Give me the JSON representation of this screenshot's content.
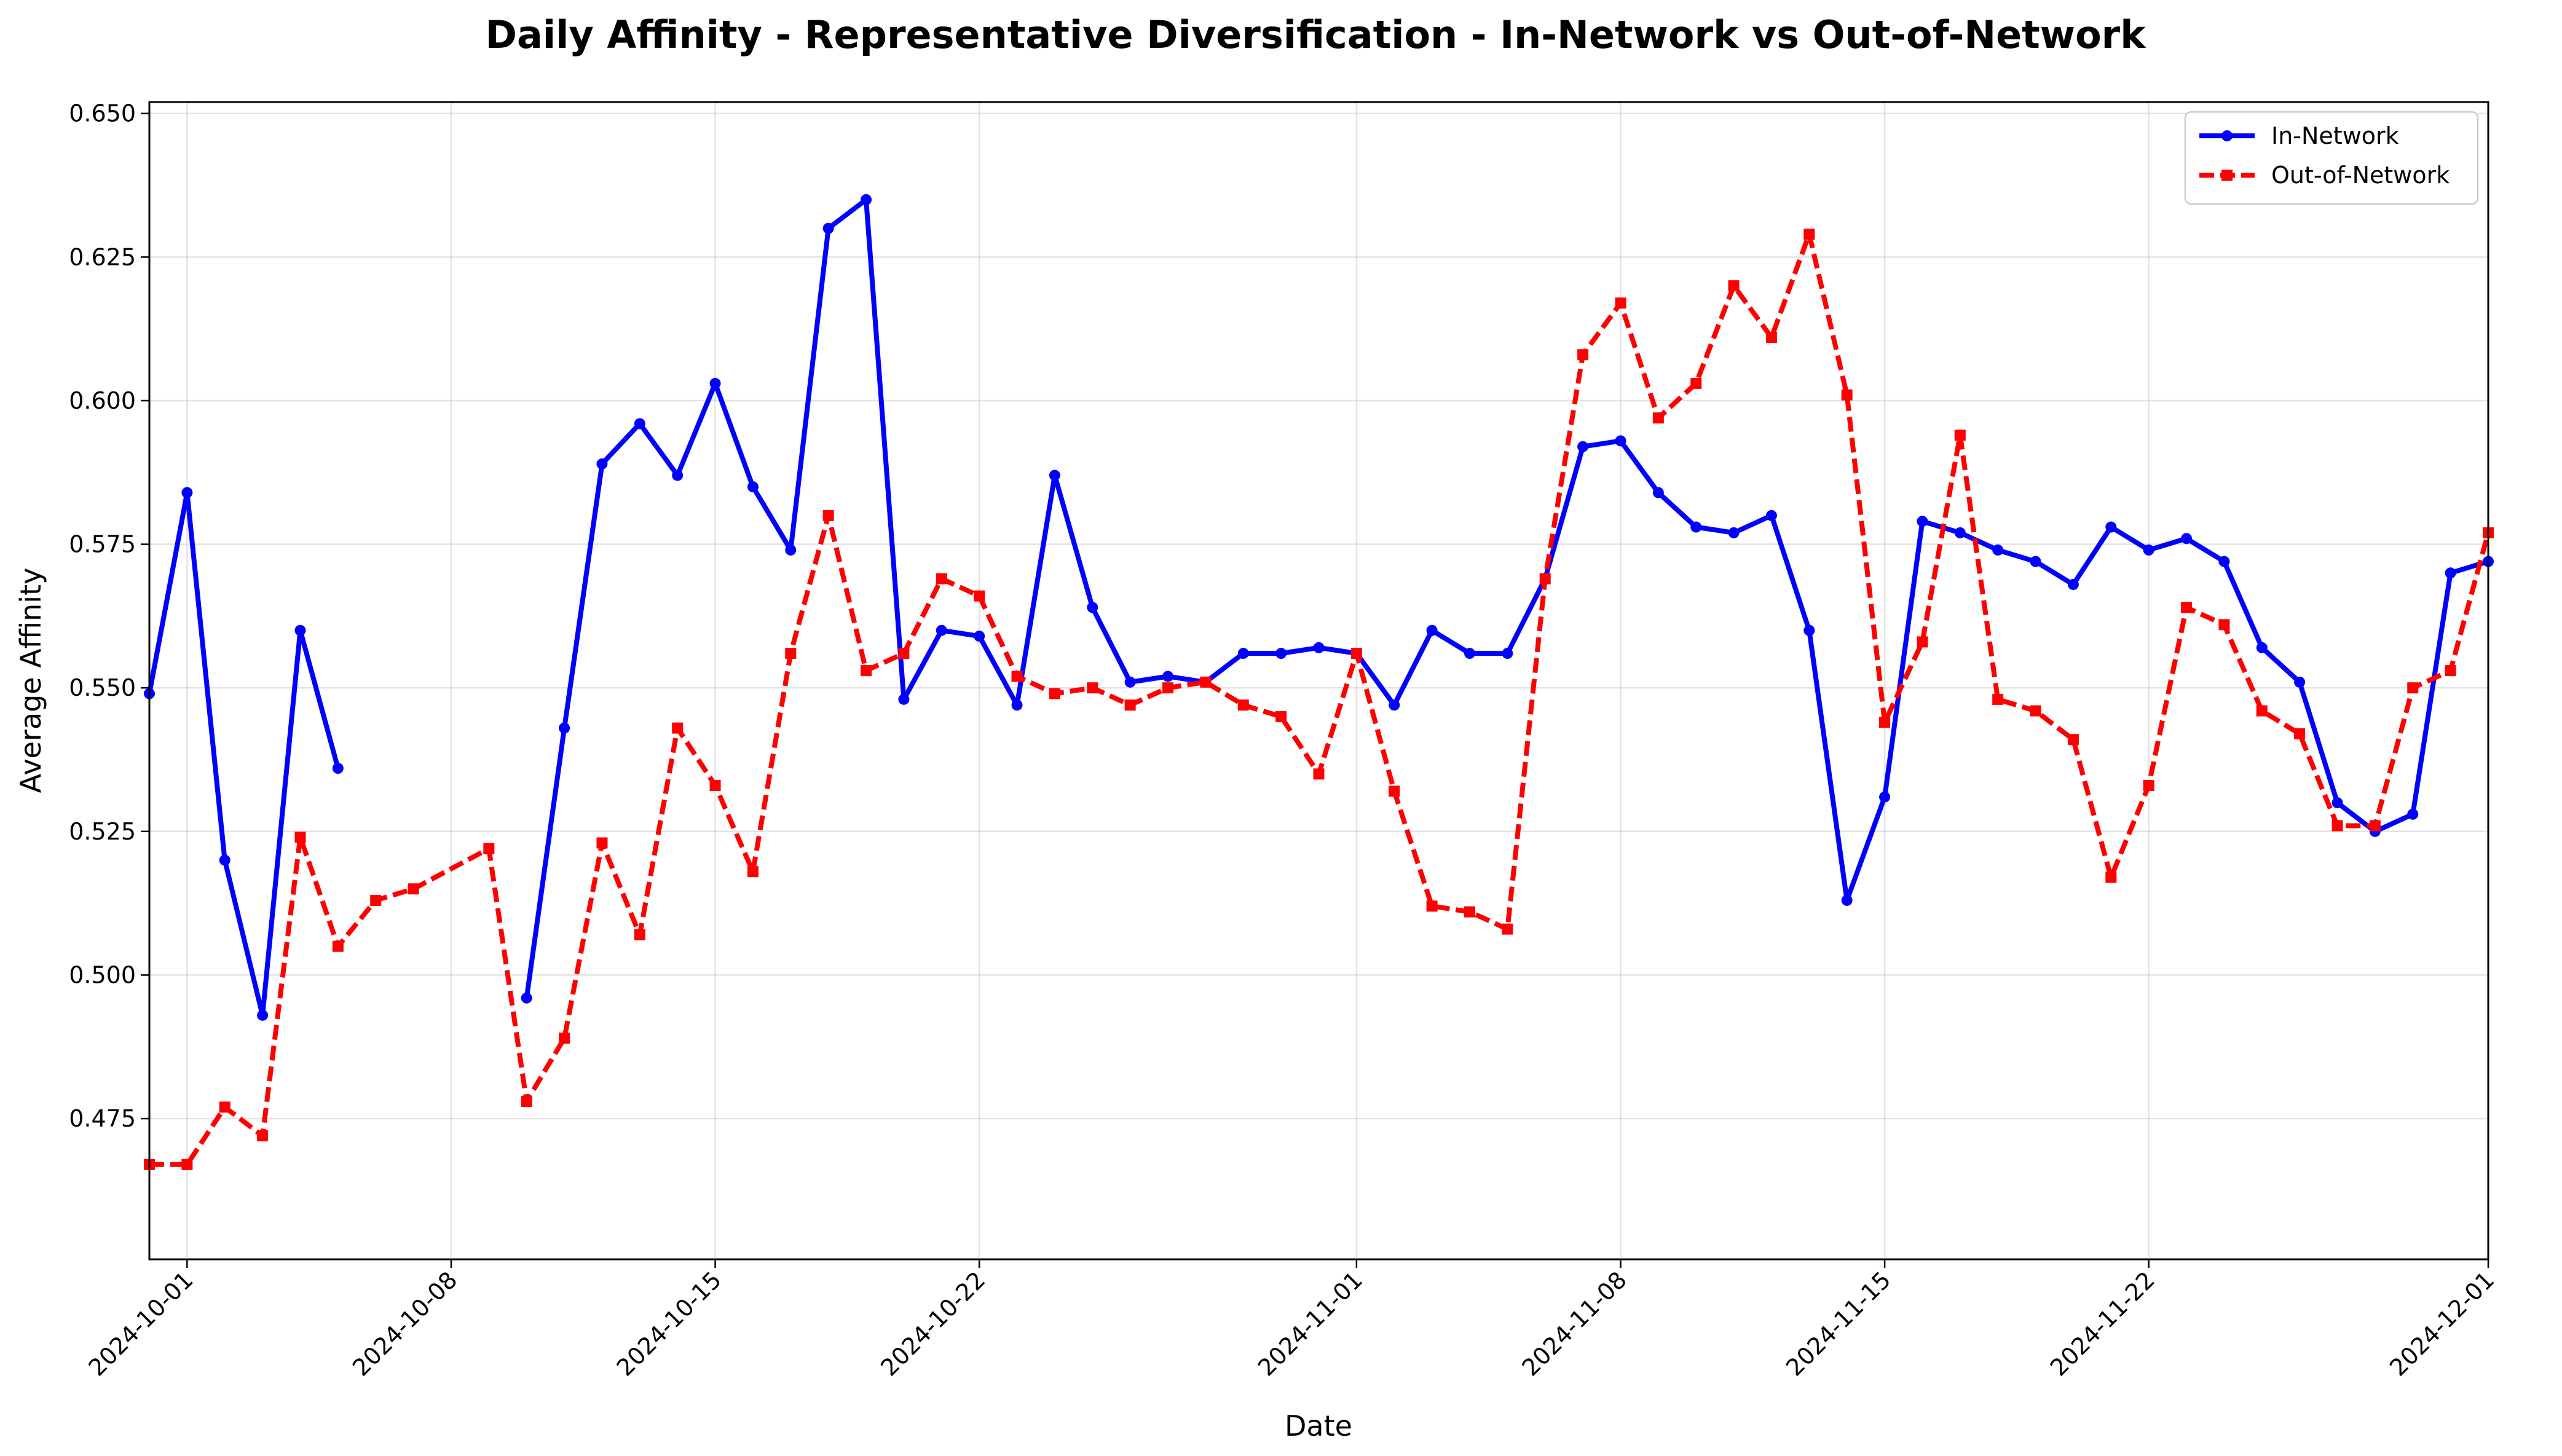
{
  "chart_data": {
    "type": "line",
    "title": "Daily Affinity - Representative Diversification - In-Network vs Out-of-Network",
    "xlabel": "Date",
    "ylabel": "Average Affinity",
    "xlim": [
      "2024-09-30",
      "2024-12-01"
    ],
    "ylim": [
      0.4505,
      0.652
    ],
    "x_ticks": [
      "2024-10-01",
      "2024-10-08",
      "2024-10-15",
      "2024-10-22",
      "2024-11-01",
      "2024-11-08",
      "2024-11-15",
      "2024-11-22",
      "2024-12-01"
    ],
    "y_ticks": [
      "0.475",
      "0.500",
      "0.525",
      "0.550",
      "0.575",
      "0.600",
      "0.625",
      "0.650"
    ],
    "grid": true,
    "legend_position": "top-right",
    "series": [
      {
        "name": "In-Network",
        "color": "#0000ff",
        "style": "solid",
        "marker": "circle",
        "points": [
          [
            "2024-09-30",
            0.549
          ],
          [
            "2024-10-01",
            0.584
          ],
          [
            "2024-10-02",
            0.52
          ],
          [
            "2024-10-03",
            0.493
          ],
          [
            "2024-10-04",
            0.56
          ],
          [
            "2024-10-05",
            0.536
          ],
          null,
          [
            "2024-10-10",
            0.496
          ],
          [
            "2024-10-11",
            0.543
          ],
          [
            "2024-10-12",
            0.589
          ],
          [
            "2024-10-13",
            0.596
          ],
          [
            "2024-10-14",
            0.587
          ],
          [
            "2024-10-15",
            0.603
          ],
          [
            "2024-10-16",
            0.585
          ],
          [
            "2024-10-17",
            0.574
          ],
          [
            "2024-10-18",
            0.63
          ],
          [
            "2024-10-19",
            0.635
          ],
          [
            "2024-10-20",
            0.548
          ],
          [
            "2024-10-21",
            0.56
          ],
          [
            "2024-10-22",
            0.559
          ],
          [
            "2024-10-23",
            0.547
          ],
          [
            "2024-10-24",
            0.587
          ],
          [
            "2024-10-25",
            0.564
          ],
          [
            "2024-10-26",
            0.551
          ],
          [
            "2024-10-27",
            0.552
          ],
          [
            "2024-10-28",
            0.551
          ],
          [
            "2024-10-29",
            0.556
          ],
          [
            "2024-10-30",
            0.556
          ],
          [
            "2024-10-31",
            0.557
          ],
          [
            "2024-11-01",
            0.556
          ],
          [
            "2024-11-02",
            0.547
          ],
          [
            "2024-11-03",
            0.56
          ],
          [
            "2024-11-04",
            0.556
          ],
          [
            "2024-11-05",
            0.556
          ],
          [
            "2024-11-06",
            0.569
          ],
          [
            "2024-11-07",
            0.592
          ],
          [
            "2024-11-08",
            0.593
          ],
          [
            "2024-11-09",
            0.584
          ],
          [
            "2024-11-10",
            0.578
          ],
          [
            "2024-11-11",
            0.577
          ],
          [
            "2024-11-12",
            0.58
          ],
          [
            "2024-11-13",
            0.56
          ],
          [
            "2024-11-14",
            0.513
          ],
          [
            "2024-11-15",
            0.531
          ],
          [
            "2024-11-16",
            0.579
          ],
          [
            "2024-11-17",
            0.577
          ],
          [
            "2024-11-18",
            0.574
          ],
          [
            "2024-11-19",
            0.572
          ],
          [
            "2024-11-20",
            0.568
          ],
          [
            "2024-11-21",
            0.578
          ],
          [
            "2024-11-22",
            0.574
          ],
          [
            "2024-11-23",
            0.576
          ],
          [
            "2024-11-24",
            0.572
          ],
          [
            "2024-11-25",
            0.557
          ],
          [
            "2024-11-26",
            0.551
          ],
          [
            "2024-11-27",
            0.53
          ],
          [
            "2024-11-28",
            0.525
          ],
          [
            "2024-11-29",
            0.528
          ],
          [
            "2024-11-30",
            0.57
          ],
          [
            "2024-12-01",
            0.572
          ]
        ]
      },
      {
        "name": "Out-of-Network",
        "color": "#ff0000",
        "style": "dashed",
        "marker": "square",
        "points": [
          [
            "2024-09-30",
            0.467
          ],
          [
            "2024-10-01",
            0.467
          ],
          [
            "2024-10-02",
            0.477
          ],
          [
            "2024-10-03",
            0.472
          ],
          [
            "2024-10-04",
            0.524
          ],
          [
            "2024-10-05",
            0.505
          ],
          [
            "2024-10-06",
            0.513
          ],
          [
            "2024-10-07",
            0.515
          ],
          [
            "2024-10-09",
            0.522
          ],
          [
            "2024-10-10",
            0.478
          ],
          [
            "2024-10-11",
            0.489
          ],
          [
            "2024-10-12",
            0.523
          ],
          [
            "2024-10-13",
            0.507
          ],
          [
            "2024-10-14",
            0.543
          ],
          [
            "2024-10-15",
            0.533
          ],
          [
            "2024-10-16",
            0.518
          ],
          [
            "2024-10-17",
            0.556
          ],
          [
            "2024-10-18",
            0.58
          ],
          [
            "2024-10-19",
            0.553
          ],
          [
            "2024-10-20",
            0.556
          ],
          [
            "2024-10-21",
            0.569
          ],
          [
            "2024-10-22",
            0.566
          ],
          [
            "2024-10-23",
            0.552
          ],
          [
            "2024-10-24",
            0.549
          ],
          [
            "2024-10-25",
            0.55
          ],
          [
            "2024-10-26",
            0.547
          ],
          [
            "2024-10-27",
            0.55
          ],
          [
            "2024-10-28",
            0.551
          ],
          [
            "2024-10-29",
            0.547
          ],
          [
            "2024-10-30",
            0.545
          ],
          [
            "2024-10-31",
            0.535
          ],
          [
            "2024-11-01",
            0.556
          ],
          [
            "2024-11-02",
            0.532
          ],
          [
            "2024-11-03",
            0.512
          ],
          [
            "2024-11-04",
            0.511
          ],
          [
            "2024-11-05",
            0.508
          ],
          [
            "2024-11-06",
            0.569
          ],
          [
            "2024-11-07",
            0.608
          ],
          [
            "2024-11-08",
            0.617
          ],
          [
            "2024-11-09",
            0.597
          ],
          [
            "2024-11-10",
            0.603
          ],
          [
            "2024-11-11",
            0.62
          ],
          [
            "2024-11-12",
            0.611
          ],
          [
            "2024-11-13",
            0.629
          ],
          [
            "2024-11-14",
            0.601
          ],
          [
            "2024-11-15",
            0.544
          ],
          [
            "2024-11-16",
            0.558
          ],
          [
            "2024-11-17",
            0.594
          ],
          [
            "2024-11-18",
            0.548
          ],
          [
            "2024-11-19",
            0.546
          ],
          [
            "2024-11-20",
            0.541
          ],
          [
            "2024-11-21",
            0.517
          ],
          [
            "2024-11-22",
            0.533
          ],
          [
            "2024-11-23",
            0.564
          ],
          [
            "2024-11-24",
            0.561
          ],
          [
            "2024-11-25",
            0.546
          ],
          [
            "2024-11-26",
            0.542
          ],
          [
            "2024-11-27",
            0.526
          ],
          [
            "2024-11-28",
            0.526
          ],
          [
            "2024-11-29",
            0.55
          ],
          [
            "2024-11-30",
            0.553
          ],
          [
            "2024-12-01",
            0.577
          ]
        ]
      }
    ]
  }
}
